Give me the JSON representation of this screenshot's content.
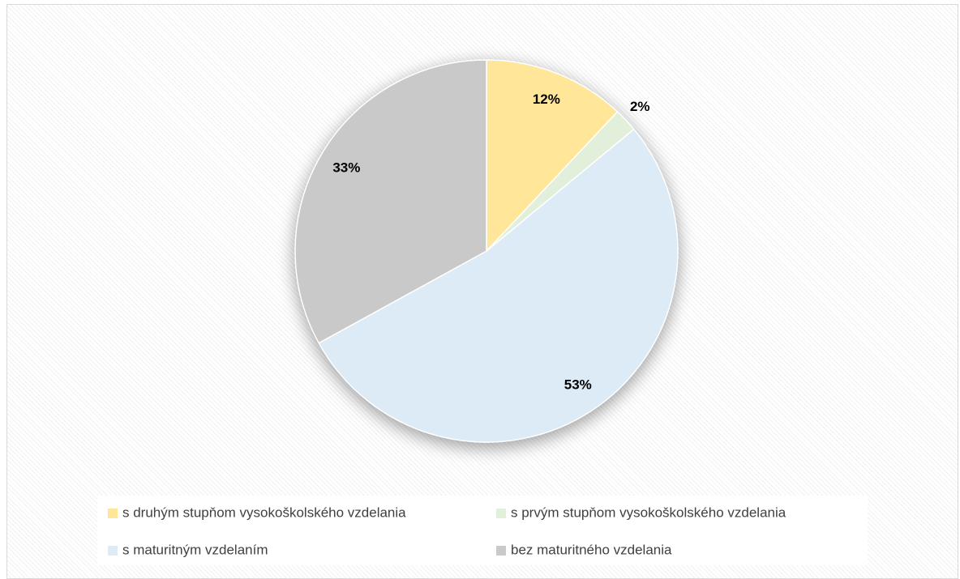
{
  "chart_data": {
    "type": "pie",
    "categories": [
      "s druhým stupňom vysokoškolského vzdelania",
      "s prvým stupňom vysokoškolského vzdelania",
      "s maturitným vzdelaním",
      "bez maturitného vzdelania"
    ],
    "values": [
      12,
      2,
      53,
      33
    ],
    "value_labels": [
      "12%",
      "2%",
      "53%",
      "33%"
    ],
    "colors": [
      "#ffe699",
      "#e2efda",
      "#ddebf7",
      "#c9c9c9"
    ],
    "legend": "bottom"
  }
}
